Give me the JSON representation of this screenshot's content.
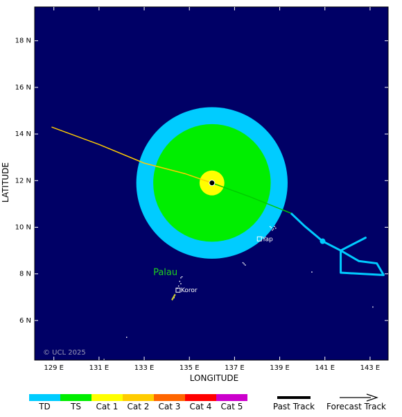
{
  "map": {
    "ocean_color": "#000066",
    "land_color": "#ffffff",
    "lon_ticks": [
      {
        "lon": 129,
        "label": "129 E"
      },
      {
        "lon": 131,
        "label": "131 E"
      },
      {
        "lon": 133,
        "label": "133 E"
      },
      {
        "lon": 135,
        "label": "135 E"
      },
      {
        "lon": 137,
        "label": "137 E"
      },
      {
        "lon": 139,
        "label": "139 E"
      },
      {
        "lon": 141,
        "label": "141 E"
      },
      {
        "lon": 143,
        "label": "143 E"
      }
    ],
    "lat_ticks": [
      {
        "lat": 6,
        "label": "6 N"
      },
      {
        "lat": 8,
        "label": "8 N"
      },
      {
        "lat": 10,
        "label": "10 N"
      },
      {
        "lat": 12,
        "label": "12 N"
      },
      {
        "lat": 14,
        "label": "14 N"
      },
      {
        "lat": 16,
        "label": "16 N"
      },
      {
        "lat": 18,
        "label": "18 N"
      }
    ],
    "xlabel": "LONGITUDE",
    "ylabel": "LATITUDE",
    "copyright": "© UCL 2025",
    "region_label": "Palau",
    "places": [
      {
        "name": "Yap",
        "lon": 138.1,
        "lat": 9.5
      },
      {
        "name": "Koror",
        "lon": 134.5,
        "lat": 7.3
      }
    ],
    "storm_center": {
      "lon": 136.0,
      "lat": 11.9
    },
    "wind_radii_deg": [
      {
        "category": "TD",
        "radius": 3.35,
        "color": "#00ccff"
      },
      {
        "category": "TS",
        "radius": 2.6,
        "color": "#00ee00"
      },
      {
        "category": "Cat 1",
        "radius": 0.55,
        "color": "#ffff00"
      }
    ],
    "past_track": [
      [
        128.9,
        14.3
      ],
      [
        131.0,
        13.55
      ],
      [
        133.0,
        12.75
      ],
      [
        134.8,
        12.3
      ],
      [
        136.0,
        11.9
      ],
      [
        137.7,
        11.3
      ],
      [
        139.5,
        10.6
      ]
    ],
    "forecast_track": [
      [
        139.5,
        10.6
      ],
      [
        140.1,
        10.05
      ],
      [
        140.9,
        9.4
      ],
      [
        141.7,
        9.0
      ],
      [
        142.8,
        9.55
      ],
      [
        141.7,
        9.0
      ],
      [
        142.5,
        8.55
      ],
      [
        143.3,
        8.45
      ],
      [
        143.6,
        7.95
      ],
      [
        141.7,
        8.05
      ],
      [
        141.7,
        9.0
      ]
    ],
    "forecast_point": {
      "lon": 140.9,
      "lat": 9.4
    }
  },
  "legend": {
    "categories": [
      {
        "label": "TD",
        "color": "#00ccff"
      },
      {
        "label": "TS",
        "color": "#00ee00"
      },
      {
        "label": "Cat 1",
        "color": "#ffff00"
      },
      {
        "label": "Cat 2",
        "color": "#ffcc00"
      },
      {
        "label": "Cat 3",
        "color": "#ff6600"
      },
      {
        "label": "Cat 4",
        "color": "#ff0000"
      },
      {
        "label": "Cat 5",
        "color": "#cc00cc"
      }
    ],
    "past_track_label": "Past Track",
    "forecast_track_label": "Forecast Track"
  }
}
